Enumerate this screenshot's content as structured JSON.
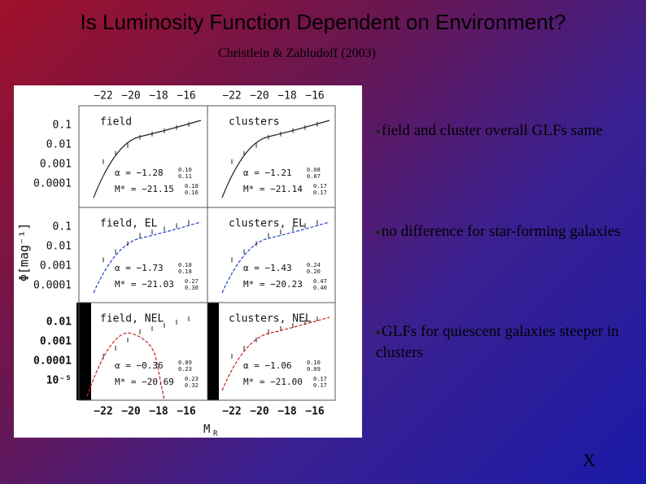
{
  "title": "Is Luminosity Function Dependent on Environment?",
  "subtitle": "Christlein & Zabludoff (2003)",
  "figure": {
    "top_x_ticks": [
      "−22",
      "−20",
      "−18",
      "−16"
    ],
    "bottom_x_ticks": [
      "−22",
      "−20",
      "−18",
      "−16"
    ],
    "x_label": "M",
    "x_label_sub": "R",
    "y_label": "Φ[mag⁻¹]",
    "rows": [
      {
        "y_ticks": [
          "0.1",
          "0.01",
          "0.001",
          "0.0001"
        ]
      },
      {
        "y_ticks": [
          "0.1",
          "0.01",
          "0.001",
          "0.0001"
        ]
      },
      {
        "y_ticks": [
          "0.01",
          "0.001",
          "0.0001",
          "10⁻⁵"
        ]
      }
    ],
    "panels": [
      {
        "label": "field",
        "alpha": "α = −1.28",
        "alpha_up": "0.10",
        "alpha_down": "0.11",
        "mstar": "M* = −21.15",
        "mstar_up": "0.18",
        "mstar_down": "0.16"
      },
      {
        "label": "clusters",
        "alpha": "α = −1.21",
        "alpha_up": "0.08",
        "alpha_down": "0.07",
        "mstar": "M* = −21.14",
        "mstar_up": "0.17",
        "mstar_down": "0.17"
      },
      {
        "label": "field, EL",
        "alpha": "α = −1.73",
        "alpha_up": "0.18",
        "alpha_down": "0.18",
        "mstar": "M* = −21.03",
        "mstar_up": "0.27",
        "mstar_down": "0.30"
      },
      {
        "label": "clusters, EL",
        "alpha": "α = −1.43",
        "alpha_up": "0.24",
        "alpha_down": "0.20",
        "mstar": "M* = −20.23",
        "mstar_up": "0.47",
        "mstar_down": "0.40"
      },
      {
        "label": "field, NEL",
        "alpha": "α = −0.36",
        "alpha_up": "0.09",
        "alpha_down": "0.23",
        "mstar": "M* = −20.69",
        "mstar_up": "0.23",
        "mstar_down": "0.32"
      },
      {
        "label": "clusters, NEL",
        "alpha": "α = −1.06",
        "alpha_up": "0.10",
        "alpha_down": "0.09",
        "mstar": "M* = −21.00",
        "mstar_up": "0.17",
        "mstar_down": "0.17"
      }
    ]
  },
  "bullets": [
    "field and cluster overall GLFs same",
    "no difference for star-forming galaxies",
    "GLFs for quiescent galaxies steeper in clusters"
  ],
  "footer": "X"
}
